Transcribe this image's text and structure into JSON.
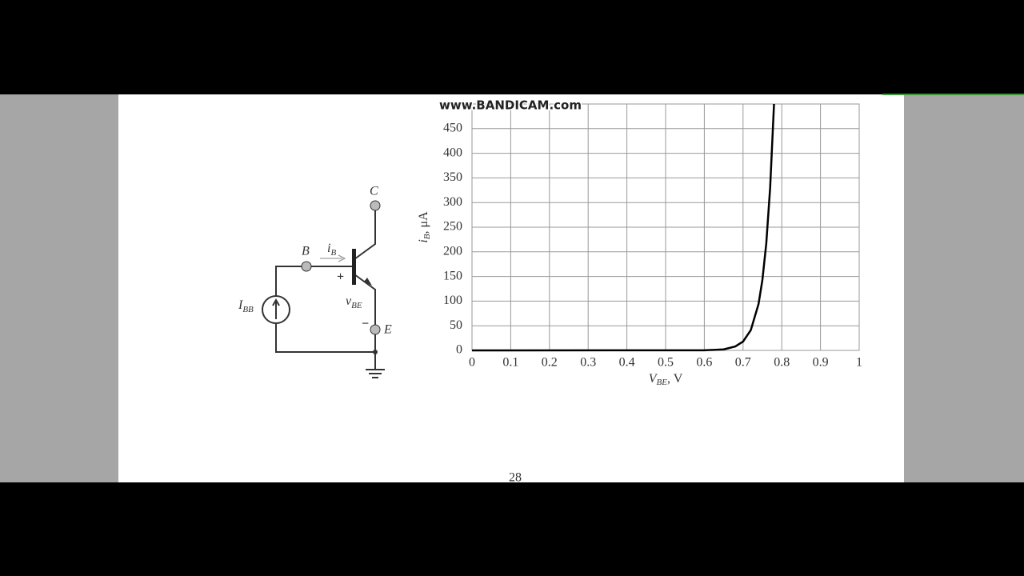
{
  "watermark": "www.BANDICAM.com",
  "page_number": "28",
  "circuit": {
    "collector": "C",
    "base": "B",
    "base_current": {
      "main": "i",
      "sub": "B"
    },
    "plus": "+",
    "vbe": {
      "main": "v",
      "sub": "BE"
    },
    "minus": "−",
    "emitter": "E",
    "source": {
      "main": "I",
      "sub": "BB"
    }
  },
  "chart_data": {
    "type": "line",
    "x_label": {
      "main": "V",
      "sub": "BE",
      "rest": ", V"
    },
    "y_label": {
      "main": "i",
      "sub": "B",
      "rest": ", μA"
    },
    "x": [
      0,
      0.6,
      0.65,
      0.68,
      0.7,
      0.72,
      0.74,
      0.75,
      0.76,
      0.77,
      0.78
    ],
    "series": [
      {
        "color": "#000000",
        "values": [
          0,
          0.3,
          2,
          8,
          18,
          41,
          94,
          143,
          217,
          330,
          500
        ]
      }
    ],
    "xlim": [
      0,
      1
    ],
    "ylim": [
      0,
      500
    ],
    "xticks": [
      0,
      0.1,
      0.2,
      0.3,
      0.4,
      0.5,
      0.6,
      0.7,
      0.8,
      0.9,
      1
    ],
    "yticks": [
      0,
      50,
      100,
      150,
      200,
      250,
      300,
      350,
      400,
      450
    ],
    "grid": true
  }
}
